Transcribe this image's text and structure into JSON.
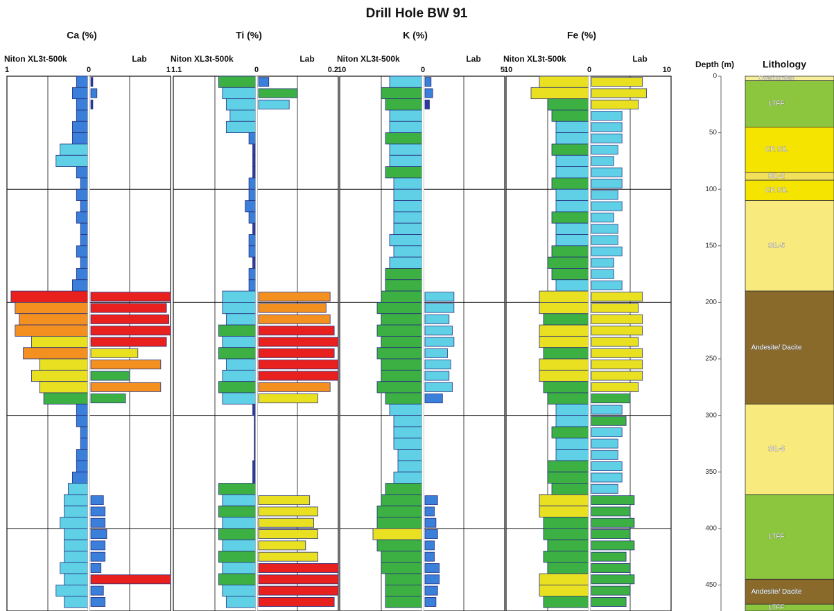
{
  "chart_data": {
    "type": "well-log",
    "title": "Drill Hole BW 91",
    "depth_label": "Depth (m)",
    "lithology_title": "Lithology",
    "ylim": [
      0,
      473
    ],
    "yticks": [
      0,
      50,
      100,
      150,
      200,
      250,
      300,
      350,
      400,
      450
    ],
    "grid_depths": [
      100,
      200,
      300,
      400
    ],
    "colormap": [
      "#2b3a9e",
      "#3a7fd9",
      "#5fd0e6",
      "#3cb043",
      "#e8e020",
      "#f39020",
      "#e8201e"
    ],
    "outline_color": "#27307f",
    "sample_depths": [
      5,
      15,
      25,
      35,
      45,
      55,
      65,
      75,
      85,
      95,
      105,
      115,
      125,
      135,
      145,
      155,
      165,
      175,
      185,
      195,
      205,
      215,
      225,
      235,
      245,
      255,
      265,
      275,
      285,
      295,
      305,
      315,
      325,
      335,
      345,
      355,
      365,
      375,
      385,
      395,
      405,
      415,
      425,
      435,
      445,
      455,
      465
    ],
    "panels": [
      {
        "title": "Ca (%)",
        "niton_label": "Niton XL3t-500k",
        "lab_label": "Lab",
        "niton_xlim": [
          1,
          0
        ],
        "lab_xlim": [
          0,
          1
        ],
        "tick_color": "#111111",
        "niton": [
          0.15,
          0.2,
          0.15,
          0.15,
          0.2,
          0.2,
          0.35,
          0.4,
          0.15,
          0.1,
          0.15,
          0.1,
          0.15,
          0.1,
          0.1,
          0.15,
          0.1,
          0.15,
          0.2,
          0.95,
          0.9,
          0.85,
          0.9,
          0.7,
          0.8,
          0.6,
          0.7,
          0.6,
          0.55,
          0.15,
          0.15,
          0.1,
          0.1,
          0.15,
          0.15,
          0.2,
          0.25,
          0.3,
          0.3,
          0.35,
          0.3,
          0.3,
          0.3,
          0.35,
          0.3,
          0.4,
          0.3
        ],
        "lab": [
          0.05,
          0.1,
          0.05,
          null,
          null,
          null,
          null,
          null,
          null,
          null,
          null,
          null,
          null,
          null,
          null,
          null,
          null,
          null,
          null,
          1.0,
          0.95,
          0.98,
          1.0,
          0.95,
          0.6,
          0.88,
          0.5,
          0.88,
          0.45,
          null,
          null,
          null,
          null,
          null,
          null,
          null,
          null,
          0.18,
          0.2,
          0.2,
          0.22,
          0.2,
          0.2,
          0.15,
          1.0,
          0.18,
          0.2
        ]
      },
      {
        "title": "Ti (%)",
        "niton_label": "Niton XL3t-500k",
        "lab_label": "Lab",
        "niton_xlim": [
          1.1,
          0
        ],
        "lab_xlim": [
          0,
          0.2
        ],
        "tick_color": "#e8321e",
        "niton": [
          0.5,
          0.45,
          0.4,
          0.35,
          0.4,
          0.1,
          0.05,
          0.05,
          0.05,
          0.1,
          0.1,
          0.15,
          0.1,
          0.05,
          0.1,
          0.1,
          0.05,
          0.1,
          0.1,
          0.45,
          0.45,
          0.4,
          0.5,
          0.45,
          0.5,
          0.4,
          0.45,
          0.5,
          0.45,
          0.05,
          0.03,
          0.03,
          0.03,
          0.03,
          0.05,
          0.05,
          0.5,
          0.45,
          0.5,
          0.45,
          0.5,
          0.45,
          0.5,
          0.45,
          0.5,
          0.45,
          0.4
        ],
        "lab": [
          0.03,
          0.1,
          0.08,
          null,
          null,
          null,
          null,
          null,
          null,
          null,
          null,
          null,
          null,
          null,
          null,
          null,
          null,
          null,
          null,
          0.18,
          0.17,
          0.18,
          0.19,
          0.2,
          0.19,
          0.2,
          0.2,
          0.18,
          0.15,
          null,
          null,
          null,
          null,
          null,
          null,
          null,
          null,
          0.13,
          0.15,
          0.14,
          0.15,
          0.12,
          0.15,
          0.2,
          0.2,
          0.2,
          0.19
        ]
      },
      {
        "title": "K (%)",
        "niton_label": "Niton XL3t-500k",
        "lab_label": "Lab",
        "niton_xlim": [
          10,
          0
        ],
        "lab_xlim": [
          0,
          5
        ],
        "tick_color": "#111111",
        "niton": [
          4,
          5,
          4.5,
          4,
          4,
          4.5,
          4,
          4,
          4.5,
          3.5,
          3.5,
          3.5,
          3.5,
          3.5,
          4,
          3.5,
          4,
          4.5,
          4.5,
          5,
          5.5,
          5,
          5.5,
          5,
          5.5,
          5,
          5,
          5.5,
          4.5,
          4,
          3.5,
          3.5,
          3.5,
          3,
          3,
          3.5,
          4.5,
          5,
          5.5,
          5.5,
          6,
          5.5,
          5,
          5,
          4.5,
          4.5,
          4.5
        ],
        "lab": [
          0.5,
          0.6,
          0.4,
          null,
          null,
          null,
          null,
          null,
          null,
          null,
          null,
          null,
          null,
          null,
          null,
          null,
          null,
          null,
          null,
          1.9,
          1.9,
          1.6,
          1.8,
          1.9,
          1.5,
          1.7,
          1.6,
          1.8,
          1.2,
          null,
          null,
          null,
          null,
          null,
          null,
          null,
          null,
          0.9,
          0.7,
          0.8,
          0.9,
          0.7,
          0.7,
          1.0,
          1.0,
          0.9,
          0.8
        ]
      },
      {
        "title": "Fe (%)",
        "niton_label": "Niton XL3t-500k",
        "lab_label": "Lab",
        "niton_xlim": [
          10,
          0
        ],
        "lab_xlim": [
          0,
          10
        ],
        "tick_color": "#e8321e",
        "niton": [
          6,
          7,
          5,
          4.5,
          4,
          4,
          4.5,
          4,
          4,
          4.5,
          4,
          4,
          4.5,
          4,
          4,
          4.5,
          5,
          4.5,
          4,
          6,
          6,
          5.5,
          6,
          6,
          5.5,
          6,
          6,
          5.5,
          5,
          4,
          4,
          4.5,
          4,
          4,
          5,
          5,
          4.5,
          6,
          6,
          5.5,
          5.5,
          5,
          5.5,
          5,
          6,
          6,
          5.5
        ],
        "lab": [
          6.5,
          7,
          6,
          4,
          4,
          4,
          3.5,
          3,
          4,
          4,
          3.5,
          4,
          3,
          3.5,
          3.5,
          4,
          3,
          3,
          4,
          6.5,
          6,
          6.5,
          6.5,
          6,
          6.5,
          6.5,
          6.5,
          6,
          5,
          4,
          4.5,
          4,
          3.5,
          3.5,
          4,
          4,
          3.5,
          5.5,
          5,
          5.5,
          5,
          5.5,
          4.5,
          5,
          5.5,
          5,
          4.5
        ]
      }
    ],
    "lithology": [
      {
        "label": "Overburden",
        "top": 0,
        "bottom": 4,
        "color": "#f6ee9a"
      },
      {
        "label": "LTFF",
        "top": 4,
        "bottom": 45,
        "color": "#8cc63f"
      },
      {
        "label": "CR SIL",
        "top": 45,
        "bottom": 85,
        "color": "#f5e400"
      },
      {
        "label": "SIL-2",
        "top": 85,
        "bottom": 92,
        "color": "#f3e05a"
      },
      {
        "label": "CR SIL",
        "top": 92,
        "bottom": 110,
        "color": "#f5e400"
      },
      {
        "label": "SIL-5",
        "top": 110,
        "bottom": 190,
        "color": "#f8ea7c"
      },
      {
        "label": "Andesite/ Dacite",
        "top": 190,
        "bottom": 290,
        "color": "#8a6a2a"
      },
      {
        "label": "SIL-5",
        "top": 290,
        "bottom": 370,
        "color": "#f8ea7c"
      },
      {
        "label": "LTFF",
        "top": 370,
        "bottom": 445,
        "color": "#8cc63f"
      },
      {
        "label": "Andesite/ Dacite",
        "top": 445,
        "bottom": 467,
        "color": "#8a6a2a"
      },
      {
        "label": "LTFF",
        "top": 467,
        "bottom": 473,
        "color": "#8cc63f"
      }
    ]
  }
}
